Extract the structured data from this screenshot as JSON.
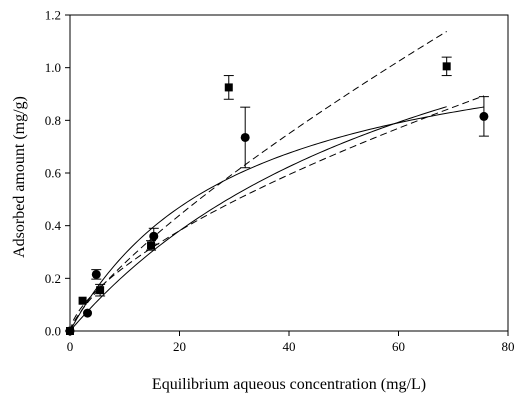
{
  "chart_data": {
    "type": "scatter",
    "xlabel": "Equilibrium aqueous concentration (mg/L)",
    "ylabel": "Adsorbed amount (mg/g)",
    "xlim": [
      0,
      80
    ],
    "ylim": [
      0,
      1.2
    ],
    "x_ticks": [
      "0",
      "20",
      "40",
      "60",
      "80"
    ],
    "y_ticks": [
      "0.0",
      "0.2",
      "0.4",
      "0.6",
      "0.8",
      "1.0",
      "1.2"
    ],
    "grid": false,
    "legend": "none",
    "series": [
      {
        "marker": "square",
        "points": [
          {
            "x": 0.0,
            "y": 0.0
          },
          {
            "x": 2.3,
            "y": 0.115
          },
          {
            "x": 5.5,
            "y": 0.155,
            "err": 0.022
          },
          {
            "x": 14.8,
            "y": 0.325,
            "err": 0.018
          },
          {
            "x": 29.0,
            "y": 0.925,
            "err": 0.045
          },
          {
            "x": 68.8,
            "y": 1.005,
            "err": 0.035
          }
        ]
      },
      {
        "marker": "circle",
        "points": [
          {
            "x": 0.0,
            "y": 0.0
          },
          {
            "x": 3.2,
            "y": 0.068
          },
          {
            "x": 4.8,
            "y": 0.215,
            "err": 0.018
          },
          {
            "x": 15.3,
            "y": 0.36,
            "err": 0.03
          },
          {
            "x": 32.0,
            "y": 0.735,
            "err": 0.115
          },
          {
            "x": 75.6,
            "y": 0.815,
            "err": 0.075
          }
        ]
      }
    ],
    "fit_curves": [
      {
        "style": "solid",
        "model": "langmuir",
        "qmax": 1.73,
        "K": 0.0141,
        "x_end": 68.8
      },
      {
        "style": "dashed",
        "model": "freundlich",
        "Kf": 0.0439,
        "n": 1.3,
        "x_end": 68.8
      },
      {
        "style": "solid",
        "model": "langmuir",
        "qmax": 1.2,
        "K": 0.0322,
        "x_end": 75.6
      },
      {
        "style": "dashed",
        "model": "freundlich",
        "Kf": 0.0558,
        "n": 1.56,
        "x_end": 75.6
      }
    ]
  }
}
